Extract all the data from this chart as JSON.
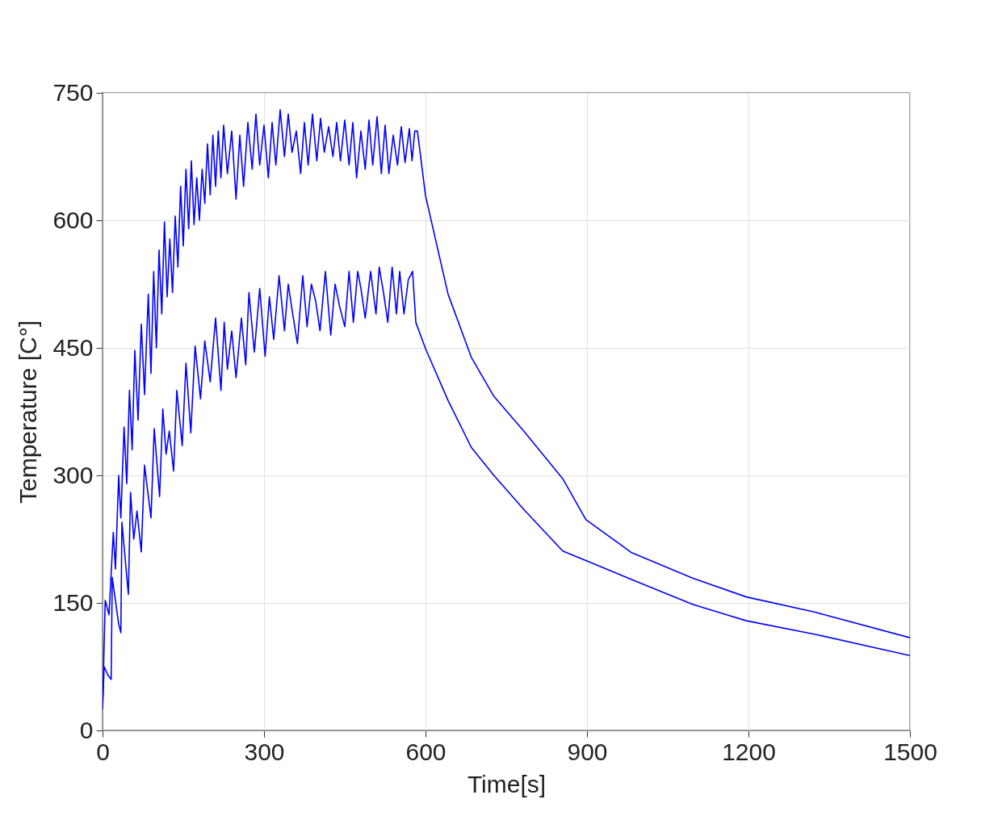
{
  "chart_data": {
    "type": "line",
    "xlabel": "Time[s]",
    "ylabel": "Temperature [C°]",
    "xlim": [
      0,
      1500
    ],
    "xticks": [
      0,
      300,
      600,
      900,
      1200,
      1500
    ],
    "ylim": [
      0,
      750
    ],
    "yticks": [
      0,
      150,
      300,
      450,
      600,
      750
    ],
    "grid": true,
    "line_style": "solid",
    "series": [
      {
        "color": "#0000ff",
        "x": [
          0,
          5,
          12,
          20,
          24,
          30,
          34,
          40,
          45,
          50,
          55,
          60,
          66,
          72,
          78,
          85,
          90,
          95,
          100,
          105,
          110,
          115,
          120,
          125,
          130,
          135,
          140,
          145,
          150,
          155,
          160,
          165,
          170,
          175,
          180,
          185,
          190,
          195,
          200,
          205,
          210,
          215,
          220,
          225,
          232,
          240,
          248,
          255,
          262,
          270,
          278,
          285,
          292,
          300,
          308,
          315,
          322,
          330,
          338,
          345,
          352,
          360,
          368,
          375,
          382,
          390,
          398,
          405,
          412,
          420,
          428,
          435,
          442,
          450,
          458,
          465,
          472,
          480,
          488,
          495,
          502,
          510,
          518,
          525,
          532,
          540,
          548,
          555,
          562,
          570,
          575,
          580,
          585,
          600,
          642,
          685,
          727,
          784,
          855,
          898,
          983,
          1097,
          1196,
          1324,
          1500
        ],
        "values": [
          25,
          153,
          136,
          233,
          190,
          300,
          250,
          357,
          290,
          400,
          330,
          447,
          365,
          478,
          395,
          513,
          420,
          540,
          450,
          565,
          490,
          598,
          510,
          578,
          515,
          605,
          545,
          640,
          570,
          660,
          590,
          670,
          595,
          650,
          600,
          660,
          620,
          690,
          630,
          700,
          640,
          705,
          650,
          712,
          655,
          705,
          625,
          700,
          640,
          715,
          660,
          725,
          665,
          712,
          650,
          715,
          665,
          730,
          675,
          725,
          680,
          705,
          655,
          715,
          665,
          725,
          670,
          720,
          680,
          710,
          675,
          715,
          670,
          718,
          665,
          715,
          650,
          705,
          660,
          718,
          665,
          722,
          655,
          712,
          655,
          700,
          665,
          710,
          668,
          708,
          670,
          705,
          705,
          629,
          513,
          439,
          393,
          351,
          296,
          248,
          209,
          179,
          157,
          139,
          109
        ]
      },
      {
        "color": "#0000ff",
        "x": [
          0,
          3,
          10,
          16,
          18,
          30,
          34,
          36,
          48,
          52,
          58,
          64,
          72,
          78,
          90,
          96,
          106,
          112,
          118,
          124,
          132,
          138,
          148,
          155,
          164,
          172,
          182,
          190,
          200,
          210,
          220,
          226,
          232,
          240,
          248,
          258,
          266,
          272,
          282,
          292,
          302,
          310,
          318,
          328,
          338,
          345,
          352,
          362,
          372,
          380,
          388,
          396,
          404,
          414,
          424,
          432,
          440,
          450,
          458,
          466,
          474,
          480,
          488,
          498,
          508,
          514,
          522,
          530,
          538,
          546,
          552,
          560,
          568,
          576,
          582,
          600,
          642,
          685,
          727,
          784,
          855,
          981,
          1097,
          1196,
          1324,
          1500
        ],
        "values": [
          25,
          75,
          65,
          60,
          180,
          125,
          115,
          245,
          160,
          280,
          225,
          258,
          210,
          312,
          250,
          355,
          275,
          378,
          325,
          352,
          305,
          400,
          335,
          432,
          350,
          452,
          390,
          458,
          410,
          485,
          400,
          480,
          425,
          470,
          415,
          485,
          430,
          515,
          445,
          520,
          440,
          510,
          460,
          535,
          470,
          525,
          495,
          455,
          535,
          475,
          525,
          505,
          470,
          540,
          465,
          525,
          500,
          475,
          540,
          480,
          540,
          520,
          485,
          540,
          490,
          545,
          515,
          480,
          545,
          490,
          540,
          490,
          530,
          540,
          480,
          449,
          388,
          333,
          300,
          259,
          211,
          178,
          148,
          129,
          113,
          88
        ]
      }
    ]
  }
}
